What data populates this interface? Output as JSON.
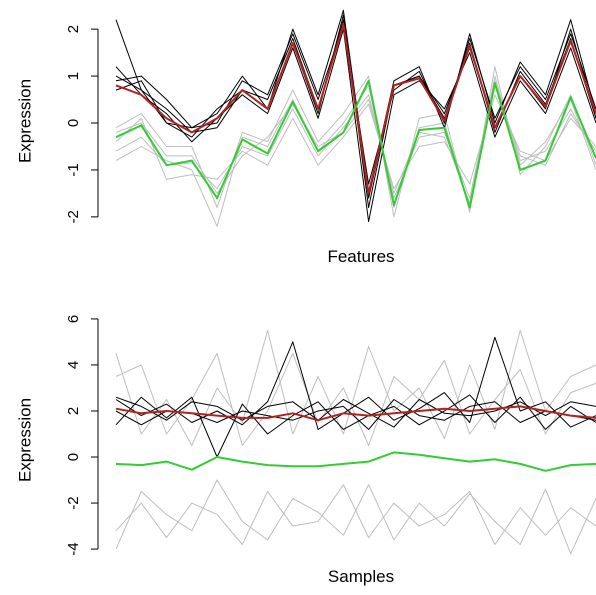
{
  "chart_data": [
    {
      "type": "line",
      "xlabel": "Features",
      "ylabel": "Expression",
      "yticks": [
        -2,
        -1,
        0,
        1,
        2
      ],
      "ylim": [
        -2.45,
        2.45
      ],
      "n_points": 20,
      "series": [
        {
          "role": "background",
          "color": "#bebebe",
          "values": [
            -0.6,
            -0.3,
            -0.9,
            -0.85,
            -1.4,
            -0.5,
            -0.7,
            0.3,
            -0.7,
            -0.1,
            0.6,
            -1.6,
            -0.3,
            -0.2,
            -1.6,
            0.9,
            -0.8,
            -0.6,
            0.3,
            -0.7
          ]
        },
        {
          "role": "background",
          "color": "#bebebe",
          "values": [
            -0.1,
            0.2,
            -0.5,
            -0.5,
            -1.8,
            -0.2,
            -0.4,
            0.7,
            -0.4,
            0.2,
            1.0,
            -2.0,
            0.1,
            0.2,
            -1.9,
            1.2,
            -1.1,
            -0.5,
            0.6,
            -0.9
          ]
        },
        {
          "role": "background",
          "color": "#bebebe",
          "values": [
            -0.4,
            0.1,
            -1.2,
            -1.1,
            -1.2,
            -0.6,
            -0.9,
            0.1,
            -0.9,
            -0.3,
            0.4,
            -1.4,
            -0.5,
            -0.4,
            -1.3,
            0.6,
            -0.6,
            -0.8,
            0.1,
            -0.5
          ]
        },
        {
          "role": "background",
          "color": "#bebebe",
          "values": [
            -0.8,
            -0.5,
            -0.8,
            -1.0,
            -2.2,
            -0.3,
            -0.5,
            0.5,
            -0.6,
            0.0,
            0.8,
            -1.8,
            -0.1,
            0.0,
            -1.8,
            1.0,
            -0.9,
            -0.4,
            0.5,
            -1.0
          ]
        },
        {
          "role": "background",
          "color": "#bebebe",
          "values": [
            -0.2,
            0.0,
            -0.7,
            -0.7,
            -1.5,
            -0.7,
            -0.3,
            0.4,
            -0.5,
            -0.2,
            0.5,
            -1.5,
            -0.2,
            -0.3,
            -1.7,
            0.8,
            -0.7,
            -0.9,
            0.2,
            -0.6
          ]
        },
        {
          "role": "highlight",
          "color": "#000000",
          "values": [
            2.2,
            0.7,
            0.0,
            -0.3,
            0.3,
            0.7,
            0.5,
            1.8,
            0.3,
            2.2,
            -1.6,
            0.8,
            1.0,
            0.1,
            1.7,
            -0.2,
            1.1,
            0.4,
            1.8,
            0.1
          ]
        },
        {
          "role": "highlight",
          "color": "#000000",
          "values": [
            0.9,
            1.0,
            0.5,
            -0.1,
            0.2,
            1.0,
            0.3,
            2.0,
            0.6,
            2.4,
            -1.5,
            0.9,
            1.2,
            -0.1,
            1.9,
            0.0,
            1.3,
            0.6,
            2.2,
            0.2
          ]
        },
        {
          "role": "highlight",
          "color": "#000000",
          "values": [
            1.2,
            0.6,
            0.2,
            -0.4,
            0.1,
            0.6,
            0.2,
            1.6,
            0.1,
            2.0,
            -2.1,
            0.6,
            0.9,
            0.3,
            1.5,
            -0.3,
            0.9,
            0.2,
            1.6,
            0.0
          ]
        },
        {
          "role": "highlight",
          "color": "#000000",
          "values": [
            0.7,
            0.9,
            0.0,
            -0.1,
            0.0,
            0.9,
            0.6,
            1.9,
            0.5,
            2.1,
            -1.3,
            0.7,
            1.1,
            0.0,
            1.8,
            0.1,
            1.2,
            0.5,
            1.9,
            0.3
          ]
        },
        {
          "role": "highlight",
          "color": "#000000",
          "values": [
            1.0,
            0.7,
            0.3,
            -0.2,
            -0.1,
            0.7,
            0.3,
            1.7,
            0.2,
            2.3,
            -1.8,
            0.8,
            1.0,
            0.2,
            1.6,
            -0.1,
            1.0,
            0.3,
            2.0,
            0.1
          ]
        },
        {
          "role": "mean",
          "color": "#b22222",
          "values": [
            0.8,
            0.6,
            0.1,
            -0.2,
            0.1,
            0.7,
            0.3,
            1.7,
            0.3,
            2.1,
            -1.5,
            0.8,
            0.95,
            0.05,
            1.65,
            -0.1,
            1.0,
            0.35,
            1.75,
            0.2
          ]
        },
        {
          "role": "mean",
          "color": "#32cd32",
          "values": [
            -0.3,
            -0.05,
            -0.9,
            -0.8,
            -1.6,
            -0.35,
            -0.65,
            0.45,
            -0.6,
            -0.2,
            0.9,
            -1.75,
            -0.15,
            -0.1,
            -1.8,
            0.85,
            -1.0,
            -0.8,
            0.55,
            -0.75
          ]
        }
      ]
    },
    {
      "type": "line",
      "xlabel": "Samples",
      "ylabel": "Expression",
      "yticks": [
        -4,
        -2,
        0,
        2,
        4,
        6
      ],
      "ylim": [
        -4.3,
        6.3
      ],
      "n_points": 20,
      "series": [
        {
          "role": "background",
          "color": "#bebebe",
          "values": [
            4.5,
            1.0,
            2.5,
            0.5,
            3.0,
            1.5,
            5.5,
            1.0,
            3.5,
            1.0,
            4.8,
            2.0,
            3.0,
            0.8,
            4.0,
            1.2,
            5.5,
            2.0,
            3.5,
            4.0
          ]
        },
        {
          "role": "background",
          "color": "#bebebe",
          "values": [
            -3.2,
            -2.0,
            -3.5,
            -2.0,
            -2.5,
            -3.8,
            -1.5,
            -3.0,
            -2.8,
            -1.2,
            -3.5,
            -2.0,
            -3.0,
            -2.5,
            -1.5,
            -3.8,
            -2.2,
            -3.4,
            -2.2,
            -3.0
          ]
        },
        {
          "role": "background",
          "color": "#bebebe",
          "values": [
            -4.0,
            -1.5,
            -2.5,
            -3.2,
            -1.0,
            -2.8,
            -3.6,
            -1.8,
            -2.4,
            -3.4,
            -1.2,
            -3.6,
            -2.0,
            -3.0,
            -1.6,
            -2.8,
            -3.8,
            -1.4,
            -4.2,
            -1.8
          ]
        },
        {
          "role": "background",
          "color": "#bebebe",
          "values": [
            3.5,
            4.0,
            1.0,
            2.5,
            4.5,
            0.5,
            2.0,
            4.5,
            1.5,
            3.0,
            0.5,
            3.5,
            2.5,
            4.2,
            1.0,
            2.5,
            3.8,
            1.0,
            2.8,
            3.2
          ]
        },
        {
          "role": "highlight",
          "color": "#000000",
          "values": [
            2.5,
            1.8,
            2.3,
            1.5,
            2.0,
            1.4,
            2.4,
            5.0,
            1.2,
            1.9,
            2.6,
            1.6,
            2.1,
            2.8,
            1.5,
            5.2,
            2.0,
            2.4,
            1.3,
            1.8
          ]
        },
        {
          "role": "highlight",
          "color": "#000000",
          "values": [
            1.4,
            2.6,
            1.7,
            2.6,
            0.0,
            2.3,
            1.0,
            1.8,
            2.4,
            1.2,
            1.8,
            2.2,
            1.4,
            2.0,
            2.7,
            1.5,
            2.6,
            1.2,
            2.2,
            1.5
          ]
        },
        {
          "role": "highlight",
          "color": "#000000",
          "values": [
            2.0,
            1.4,
            2.0,
            1.9,
            1.5,
            2.0,
            1.8,
            1.6,
            2.0,
            2.2,
            1.2,
            2.5,
            1.8,
            1.6,
            2.2,
            2.4,
            1.5,
            2.0,
            1.8,
            1.6
          ]
        },
        {
          "role": "highlight",
          "color": "#000000",
          "values": [
            2.6,
            2.2,
            1.6,
            2.4,
            2.2,
            1.6,
            2.2,
            2.4,
            1.6,
            2.5,
            1.9,
            1.3,
            2.5,
            1.9,
            1.8,
            2.0,
            2.4,
            1.8,
            2.4,
            2.2
          ]
        },
        {
          "role": "mean",
          "color": "#b22222",
          "values": [
            2.1,
            1.9,
            2.0,
            1.9,
            1.8,
            1.7,
            1.7,
            1.9,
            1.6,
            1.9,
            1.8,
            1.9,
            2.0,
            2.1,
            2.0,
            2.1,
            2.2,
            2.0,
            1.8,
            1.7
          ]
        },
        {
          "role": "mean",
          "color": "#32cd32",
          "values": [
            -0.3,
            -0.35,
            -0.2,
            -0.55,
            0.0,
            -0.2,
            -0.35,
            -0.4,
            -0.4,
            -0.3,
            -0.2,
            0.2,
            0.1,
            -0.05,
            -0.2,
            -0.1,
            -0.3,
            -0.6,
            -0.35,
            -0.3
          ]
        }
      ]
    }
  ]
}
